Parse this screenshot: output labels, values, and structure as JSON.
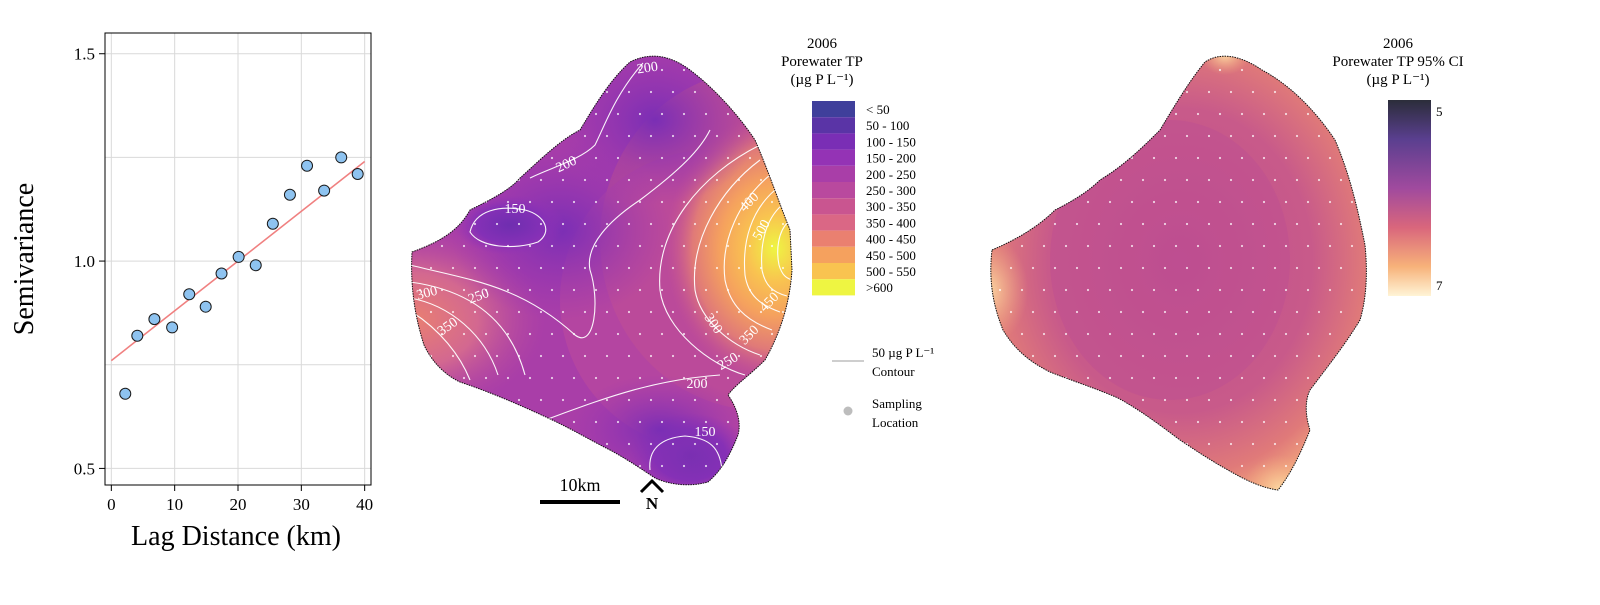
{
  "chart_data": [
    {
      "type": "scatter",
      "xlabel": "Lag Distance (km)",
      "ylabel": "Semivariance",
      "xlim": [
        -1,
        41
      ],
      "ylim": [
        0.46,
        1.55
      ],
      "xticks": [
        0,
        10,
        20,
        30,
        40
      ],
      "yticks": [
        0.5,
        1.0,
        1.5
      ],
      "ytick_labels": [
        "0.5",
        "1.0",
        "1.5"
      ],
      "grid": true,
      "points": {
        "x": [
          2.2,
          4.1,
          6.8,
          9.6,
          12.3,
          14.9,
          17.4,
          20.1,
          22.8,
          25.5,
          28.2,
          30.9,
          33.6,
          36.3,
          38.9
        ],
        "y": [
          0.68,
          0.82,
          0.86,
          0.84,
          0.92,
          0.89,
          0.97,
          1.01,
          0.99,
          1.09,
          1.16,
          1.23,
          1.17,
          1.25,
          1.21
        ]
      },
      "fit_line": {
        "x": [
          0,
          40
        ],
        "y": [
          0.76,
          1.24
        ]
      },
      "colors": {
        "points": "#8ec3f0",
        "fit_line": "#f08080"
      }
    },
    {
      "type": "map",
      "title": [
        "2006",
        "Porewater TP",
        "(µg P L⁻¹)"
      ],
      "legend_labels": [
        "< 50",
        "50 - 100",
        "100 - 150",
        "150 - 200",
        "200 - 250",
        "250 - 300",
        "300 - 350",
        "350 - 400",
        "400 - 450",
        "450 - 500",
        "500 - 550",
        ">600"
      ],
      "legend_colors": [
        "#3f3f9b",
        "#5a34a6",
        "#7a2eb5",
        "#9433b5",
        "#a93ea8",
        "#b9499e",
        "#c95590",
        "#da6785",
        "#ea8070",
        "#f5a15e",
        "#f9c350",
        "#eef542"
      ],
      "contour_labels": [
        "200",
        "200",
        "150",
        "300",
        "250",
        "350",
        "400",
        "500",
        "450",
        "350",
        "300",
        "250",
        "200",
        "150"
      ],
      "scale_label": "10km",
      "north_label": "N",
      "legend_contour": [
        "50 µg P L⁻¹",
        "Contour"
      ],
      "legend_sample": [
        "Sampling",
        "Location"
      ]
    },
    {
      "type": "map",
      "title": [
        "2006",
        "Porewater TP 95% CI",
        "(µg P L⁻¹)"
      ],
      "colorbar_labels": {
        "top": "5",
        "bottom": "7"
      },
      "colorbar_colors": [
        "#2b2d3a",
        "#5a3f8f",
        "#a04a9e",
        "#d9667c",
        "#f7b27a",
        "#fff4d6"
      ]
    }
  ]
}
